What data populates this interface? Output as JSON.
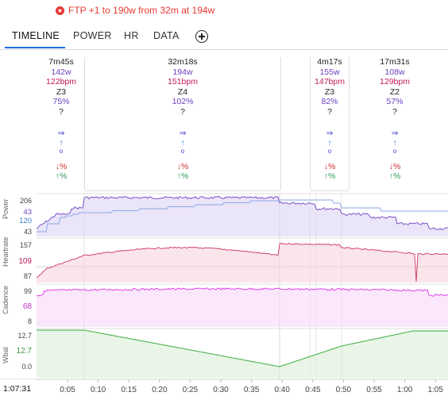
{
  "banner": {
    "text": "FTP +1 to 190w from 32m at 194w",
    "icon": "star-badge-icon",
    "color": "#e53935"
  },
  "tabs": [
    {
      "label": "TIMELINE",
      "active": true
    },
    {
      "label": "POWER",
      "active": false
    },
    {
      "label": "HR",
      "active": false
    },
    {
      "label": "DATA",
      "active": false
    }
  ],
  "intervals": [
    {
      "time": "7m45s",
      "power": "142w",
      "hr": "122bpm",
      "zone": "Z3",
      "pct": "75%",
      "q": "?",
      "arr": "⇒",
      "up": "↑",
      "circ": "o",
      "down": "↓%",
      "green": "↑%"
    },
    {
      "time": "32m18s",
      "power": "194w",
      "hr": "151bpm",
      "zone": "Z4",
      "pct": "102%",
      "q": "?",
      "arr": "⇒",
      "up": "↑",
      "circ": "o",
      "down": "↓%",
      "green": "↑%"
    },
    {
      "time": "4m17s",
      "power": "155w",
      "hr": "147bpm",
      "zone": "Z3",
      "pct": "82%",
      "q": "?",
      "arr": "⇒",
      "up": "↑",
      "circ": "o",
      "down": "↓%",
      "green": "↑%"
    },
    {
      "time": "17m31s",
      "power": "108w",
      "hr": "129bpm",
      "zone": "Z2",
      "pct": "57%",
      "q": "?",
      "arr": "⇒",
      "up": "↑",
      "circ": "o",
      "down": "↓%",
      "green": "↑%"
    }
  ],
  "panels": {
    "power": {
      "label": "Power",
      "ticks": [
        "206",
        "43",
        "120",
        "43"
      ]
    },
    "heartrate": {
      "label": "Heartrate",
      "ticks": [
        "157",
        "109",
        "87"
      ]
    },
    "cadence": {
      "label": "Cadence",
      "ticks": [
        "99",
        "68",
        "8"
      ]
    },
    "wbal": {
      "label": "Wbal",
      "ticks": [
        "12.7",
        "12.7",
        "0.0"
      ]
    }
  },
  "xaxis": {
    "current": "1:07:31",
    "ticks": [
      "0:05",
      "0:10",
      "0:15",
      "0:20",
      "0:25",
      "0:30",
      "0:35",
      "0:40",
      "0:45",
      "0:50",
      "0:55",
      "1:00",
      "1:05"
    ]
  },
  "colors": {
    "power": "#7b52c9",
    "wprime": "#8aa6e6",
    "hr": "#d0456e",
    "cadence": "#e040e8",
    "wbal": "#5cb85c"
  }
}
